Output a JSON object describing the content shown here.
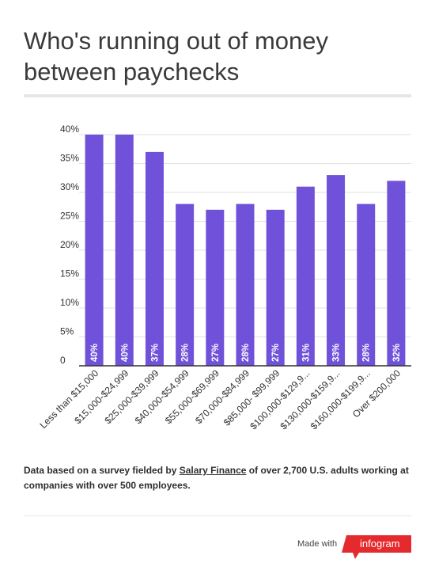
{
  "title": "Who's running out of money between paychecks",
  "footnote": {
    "before": "Data based on a survey fielded by ",
    "link_text": "Salary Finance",
    "after": " of over 2,700 U.S. adults working at companies with over 500 employees."
  },
  "branding": {
    "made_with": "Made with",
    "brand": "infogram",
    "brand_color": "#e52a2d"
  },
  "colors": {
    "bar": "#6f52d9",
    "grid": "#e2e2e2",
    "axis": "#333333"
  },
  "chart_data": {
    "type": "bar",
    "title": "",
    "xlabel": "",
    "ylabel": "",
    "ylim": [
      0,
      40
    ],
    "yticks": [
      0,
      5,
      10,
      15,
      20,
      25,
      30,
      35,
      40
    ],
    "ytick_labels": [
      "0",
      "5%",
      "10%",
      "15%",
      "20%",
      "25%",
      "30%",
      "35%",
      "40%"
    ],
    "grid": true,
    "categories": [
      "Less than $15,000",
      "$15,000-$24,999",
      "$25,000-$39,999",
      "$40,000-$54,999",
      "$55,000-$69,999",
      "$70,000-$84,999",
      "$85,000- $99,999",
      "$100,000-$129,9...",
      "$130,000-$159,9...",
      "$160,000-$199,9...",
      "Over $200,000"
    ],
    "values": [
      40,
      40,
      37,
      28,
      27,
      28,
      27,
      31,
      33,
      28,
      32
    ],
    "data_labels": [
      "40%",
      "40%",
      "37%",
      "28%",
      "27%",
      "28%",
      "27%",
      "31%",
      "33%",
      "28%",
      "32%"
    ]
  }
}
